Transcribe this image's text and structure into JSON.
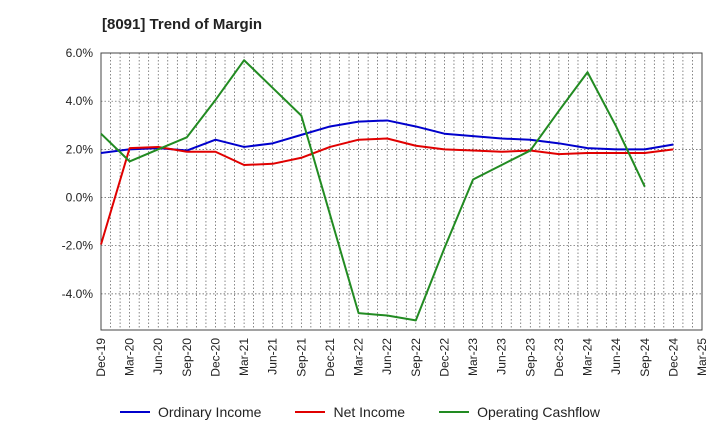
{
  "chart_data": {
    "type": "line",
    "title": "[8091]  Trend of Margin",
    "categories": [
      "Dec-19",
      "Mar-20",
      "Jun-20",
      "Sep-20",
      "Dec-20",
      "Mar-21",
      "Jun-21",
      "Sep-21",
      "Dec-21",
      "Mar-22",
      "Jun-22",
      "Sep-22",
      "Dec-22",
      "Mar-23",
      "Jun-23",
      "Sep-23",
      "Dec-23",
      "Mar-24",
      "Jun-24",
      "Sep-24",
      "Dec-24",
      "Mar-25"
    ],
    "ylim": [
      -5.5,
      6.0
    ],
    "yticks": [
      6.0,
      4.0,
      2.0,
      0.0,
      -2.0,
      -4.0
    ],
    "ytick_labels": [
      "6.0%",
      "4.0%",
      "2.0%",
      "0.0%",
      "-2.0%",
      "-4.0%"
    ],
    "grid": true,
    "legend_position": "bottom",
    "series": [
      {
        "name": "Ordinary Income",
        "color": "#0000cc",
        "values": [
          1.85,
          2.0,
          2.05,
          1.95,
          2.4,
          2.1,
          2.25,
          2.6,
          2.95,
          3.15,
          3.2,
          2.95,
          2.65,
          2.55,
          2.45,
          2.4,
          2.25,
          2.05,
          2.0,
          2.0,
          2.2,
          null
        ]
      },
      {
        "name": "Net Income",
        "color": "#e00000",
        "values": [
          -1.95,
          2.05,
          2.1,
          1.9,
          1.9,
          1.35,
          1.4,
          1.65,
          2.1,
          2.4,
          2.45,
          2.15,
          2.0,
          1.95,
          1.9,
          1.95,
          1.8,
          1.85,
          1.85,
          1.85,
          2.0,
          null
        ]
      },
      {
        "name": "Operating Cashflow",
        "color": "#228b22",
        "values": [
          2.65,
          1.5,
          2.0,
          2.5,
          4.05,
          5.7,
          4.55,
          3.4,
          null,
          -4.8,
          -4.9,
          -5.1,
          -2.1,
          0.75,
          1.35,
          1.95,
          3.6,
          5.2,
          2.95,
          0.45,
          null,
          null
        ]
      }
    ]
  }
}
